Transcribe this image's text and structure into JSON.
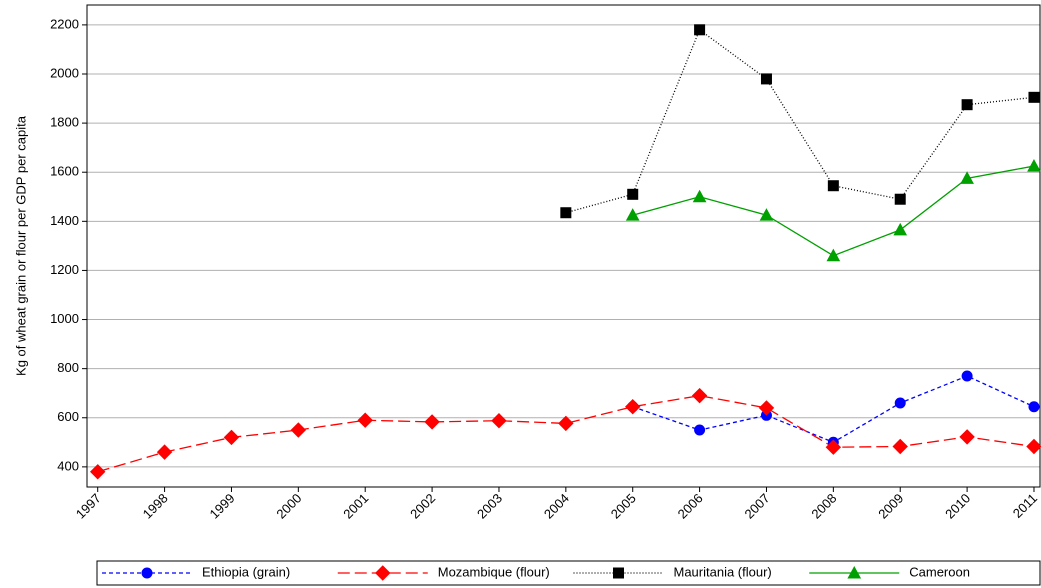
{
  "chart_data": {
    "type": "line",
    "y_label": "Kg of wheat grain or flour per GDP per capita",
    "x": [
      1997,
      1998,
      1999,
      2000,
      2001,
      2002,
      2003,
      2004,
      2005,
      2006,
      2007,
      2008,
      2009,
      2010,
      2011
    ],
    "xlim": [
      1996.84,
      2011.09
    ],
    "xticks": [
      1997,
      1998,
      1999,
      2000,
      2001,
      2002,
      2003,
      2004,
      2005,
      2006,
      2007,
      2008,
      2009,
      2010,
      2011
    ],
    "ylim": [
      318,
      2281
    ],
    "yticks": [
      400,
      600,
      800,
      1000,
      1200,
      1400,
      1600,
      1800,
      2000,
      2200
    ],
    "grid": true,
    "legend": "bottom",
    "series": [
      {
        "name": "Ethiopia (grain)",
        "color": "#0000ff",
        "dash": "4,3",
        "marker": "circle",
        "values": [
          null,
          null,
          null,
          null,
          null,
          null,
          null,
          null,
          645,
          550,
          610,
          500,
          660,
          770,
          645
        ]
      },
      {
        "name": "Mozambique (flour)",
        "color": "#ff0000",
        "dash": "12,5",
        "marker": "diamond",
        "values": [
          380,
          460,
          520,
          550,
          590,
          583,
          588,
          577,
          645,
          690,
          640,
          480,
          483,
          522,
          483
        ]
      },
      {
        "name": "Mauritania (flour)",
        "color": "#000000",
        "dash": "1,2",
        "marker": "square",
        "values": [
          null,
          null,
          null,
          null,
          null,
          null,
          null,
          1435,
          1510,
          2180,
          1980,
          1545,
          1490,
          1875,
          1905
        ]
      },
      {
        "name": "Cameroon",
        "color": "#00a000",
        "dash": "none",
        "marker": "triangle",
        "values": [
          null,
          null,
          null,
          null,
          null,
          null,
          null,
          null,
          1425,
          1500,
          1425,
          1260,
          1365,
          1575,
          1625
        ]
      }
    ]
  }
}
